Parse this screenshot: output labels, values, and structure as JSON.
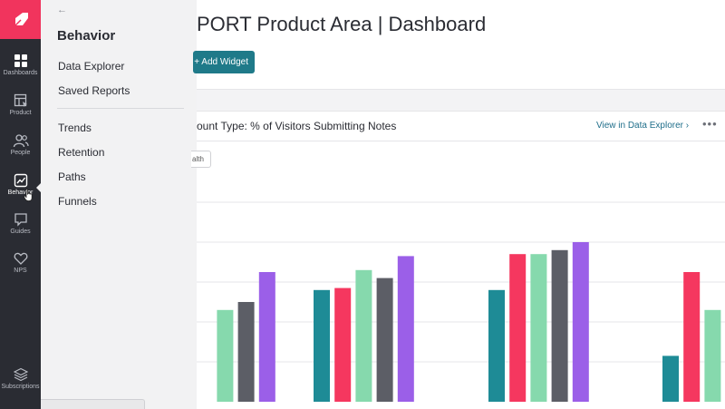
{
  "rail": {
    "items": [
      {
        "key": "dashboards",
        "label": "Dashboards",
        "icon": "grid-icon",
        "active": false
      },
      {
        "key": "product",
        "label": "Product",
        "icon": "product-icon",
        "active": false
      },
      {
        "key": "people",
        "label": "People",
        "icon": "people-icon",
        "active": false
      },
      {
        "key": "behavior",
        "label": "Behavior",
        "icon": "behavior-chart-icon",
        "active": true
      },
      {
        "key": "guides",
        "label": "Guides",
        "icon": "chat-bubble-icon",
        "active": false
      },
      {
        "key": "nps",
        "label": "NPS",
        "icon": "heart-icon",
        "active": false
      },
      {
        "key": "subscriptions",
        "label": "Subscriptions",
        "icon": "layers-icon",
        "active": false
      }
    ]
  },
  "flyout": {
    "back_icon": "←",
    "title": "Behavior",
    "links_top": [
      "Data Explorer",
      "Saved Reports"
    ],
    "links_bottom": [
      "Trends",
      "Retention",
      "Paths",
      "Funnels"
    ]
  },
  "main": {
    "page_title": "PORT Product Area | Dashboard",
    "add_widget_label": "+ Add Widget",
    "widget_title": "ount Type: % of Visitors Submitting Notes",
    "view_link": "View in Data Explorer ›",
    "more_icon": "•••",
    "chip_label": "alth"
  },
  "colors": {
    "brand": "#f1345d",
    "rail": "#2a2c33",
    "accent": "#1f7a89",
    "series": [
      "#1e8b96",
      "#f5375f",
      "#86d9ad",
      "#5c5e66",
      "#9b5fe8"
    ]
  },
  "chart_data": {
    "type": "bar",
    "title": "",
    "xlabel": "",
    "ylabel": "",
    "grid": true,
    "gridlines": 5,
    "groups": [
      {
        "values": [
          null,
          null,
          0.46,
          0.5,
          0.65
        ]
      },
      {
        "values": [
          0.56,
          0.57,
          0.66,
          0.62,
          0.73
        ]
      },
      {
        "values": [
          0.56,
          0.74,
          0.74,
          0.76,
          0.8
        ]
      },
      {
        "values": [
          0.23,
          0.65,
          0.46,
          null,
          null
        ]
      }
    ]
  }
}
